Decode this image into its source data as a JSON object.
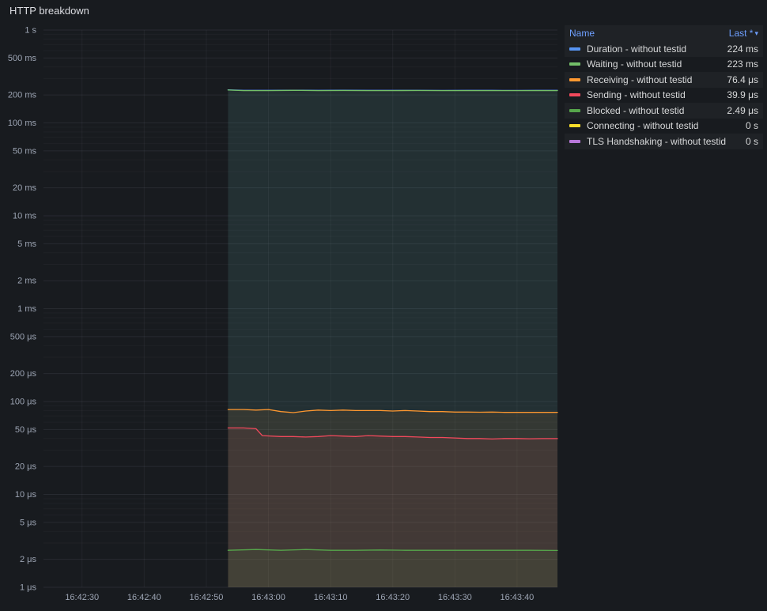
{
  "panel": {
    "title": "HTTP breakdown"
  },
  "legend": {
    "name_header": "Name",
    "value_header": "Last *",
    "sort_icon": "▾"
  },
  "chart_data": {
    "type": "line",
    "title": "HTTP breakdown",
    "y_scale": "log",
    "ylabel": "",
    "xlabel": "",
    "grid": true,
    "legend_position": "right-table",
    "x_range_s": [
      -6.2,
      76.5
    ],
    "x_ticks": [
      {
        "t": 0,
        "label": "16:42:30"
      },
      {
        "t": 10,
        "label": "16:42:40"
      },
      {
        "t": 20,
        "label": "16:42:50"
      },
      {
        "t": 30,
        "label": "16:43:00"
      },
      {
        "t": 40,
        "label": "16:43:10"
      },
      {
        "t": 50,
        "label": "16:43:20"
      },
      {
        "t": 60,
        "label": "16:43:30"
      },
      {
        "t": 70,
        "label": "16:43:40"
      }
    ],
    "y_ticks": [
      {
        "v_us": 1000000,
        "label": "1 s"
      },
      {
        "v_us": 500000,
        "label": "500 ms"
      },
      {
        "v_us": 200000,
        "label": "200 ms"
      },
      {
        "v_us": 100000,
        "label": "100 ms"
      },
      {
        "v_us": 50000,
        "label": "50 ms"
      },
      {
        "v_us": 20000,
        "label": "20 ms"
      },
      {
        "v_us": 10000,
        "label": "10 ms"
      },
      {
        "v_us": 5000,
        "label": "5 ms"
      },
      {
        "v_us": 2000,
        "label": "2 ms"
      },
      {
        "v_us": 1000,
        "label": "1 ms"
      },
      {
        "v_us": 500,
        "label": "500 μs"
      },
      {
        "v_us": 200,
        "label": "200 μs"
      },
      {
        "v_us": 100,
        "label": "100 μs"
      },
      {
        "v_us": 50,
        "label": "50 μs"
      },
      {
        "v_us": 20,
        "label": "20 μs"
      },
      {
        "v_us": 10,
        "label": "10 μs"
      },
      {
        "v_us": 5,
        "label": "5 μs"
      },
      {
        "v_us": 2,
        "label": "2 μs"
      },
      {
        "v_us": 1,
        "label": "1 μs"
      }
    ],
    "y_minor_multiples": [
      3,
      4,
      6,
      7,
      8,
      9
    ],
    "series": [
      {
        "name": "Duration - without testid",
        "color": "#5794F2",
        "last": "224 ms",
        "points": [
          [
            23.5,
            227000
          ],
          [
            26,
            224000
          ],
          [
            30,
            224000
          ],
          [
            34,
            225000
          ],
          [
            38,
            224000
          ],
          [
            42,
            224500
          ],
          [
            46,
            224000
          ],
          [
            50,
            224000
          ],
          [
            54,
            224300
          ],
          [
            58,
            223800
          ],
          [
            62,
            224000
          ],
          [
            66,
            224000
          ],
          [
            70,
            223900
          ],
          [
            73,
            224000
          ],
          [
            76.5,
            224000
          ]
        ]
      },
      {
        "name": "Waiting - without testid",
        "color": "#73BF69",
        "last": "223 ms",
        "points": [
          [
            23.5,
            226000
          ],
          [
            26,
            223000
          ],
          [
            30,
            223000
          ],
          [
            34,
            224000
          ],
          [
            38,
            223000
          ],
          [
            42,
            223500
          ],
          [
            46,
            223000
          ],
          [
            50,
            223000
          ],
          [
            54,
            223300
          ],
          [
            58,
            222800
          ],
          [
            62,
            223000
          ],
          [
            66,
            223000
          ],
          [
            70,
            222900
          ],
          [
            73,
            223000
          ],
          [
            76.5,
            223000
          ]
        ]
      },
      {
        "name": "Receiving - without testid",
        "color": "#FF9830",
        "last": "76.4 μs",
        "points": [
          [
            23.5,
            82
          ],
          [
            26,
            82
          ],
          [
            28,
            81
          ],
          [
            30,
            82
          ],
          [
            32,
            78
          ],
          [
            34,
            76
          ],
          [
            36,
            79
          ],
          [
            38,
            81
          ],
          [
            40,
            80
          ],
          [
            42,
            81
          ],
          [
            44,
            80
          ],
          [
            46,
            80
          ],
          [
            48,
            80
          ],
          [
            50,
            79
          ],
          [
            52,
            80
          ],
          [
            54,
            79
          ],
          [
            56,
            78
          ],
          [
            58,
            78
          ],
          [
            60,
            77
          ],
          [
            62,
            77
          ],
          [
            64,
            76.8
          ],
          [
            66,
            77
          ],
          [
            68,
            76.5
          ],
          [
            70,
            76.5
          ],
          [
            72,
            76.4
          ],
          [
            74,
            76.4
          ],
          [
            76.5,
            76.4
          ]
        ]
      },
      {
        "name": "Sending - without testid",
        "color": "#F2495C",
        "last": "39.9 μs",
        "points": [
          [
            23.5,
            52
          ],
          [
            26,
            52
          ],
          [
            28,
            51
          ],
          [
            29,
            43
          ],
          [
            32,
            42
          ],
          [
            34,
            42
          ],
          [
            36,
            41.5
          ],
          [
            38,
            42
          ],
          [
            40,
            43
          ],
          [
            42,
            42.5
          ],
          [
            44,
            42
          ],
          [
            46,
            43
          ],
          [
            48,
            42.5
          ],
          [
            50,
            42
          ],
          [
            52,
            42
          ],
          [
            54,
            41.5
          ],
          [
            56,
            41
          ],
          [
            58,
            41
          ],
          [
            60,
            40.5
          ],
          [
            62,
            40
          ],
          [
            64,
            40
          ],
          [
            66,
            39.5
          ],
          [
            68,
            40
          ],
          [
            70,
            40
          ],
          [
            72,
            39.7
          ],
          [
            74,
            39.9
          ],
          [
            76.5,
            39.9
          ]
        ]
      },
      {
        "name": "Blocked - without testid",
        "color": "#56A64B",
        "last": "2.49 μs",
        "points": [
          [
            23.5,
            2.5
          ],
          [
            28,
            2.55
          ],
          [
            32,
            2.5
          ],
          [
            36,
            2.55
          ],
          [
            40,
            2.5
          ],
          [
            44,
            2.5
          ],
          [
            48,
            2.52
          ],
          [
            52,
            2.5
          ],
          [
            56,
            2.5
          ],
          [
            60,
            2.5
          ],
          [
            64,
            2.5
          ],
          [
            68,
            2.5
          ],
          [
            72,
            2.5
          ],
          [
            76.5,
            2.49
          ]
        ]
      },
      {
        "name": "Connecting - without testid",
        "color": "#FADE2A",
        "last": "0 s",
        "points": [
          [
            23.5,
            0
          ],
          [
            76.5,
            0
          ]
        ]
      },
      {
        "name": "TLS Handshaking - without testid",
        "color": "#B877D9",
        "last": "0 s",
        "points": [
          [
            23.5,
            0
          ],
          [
            76.5,
            0
          ]
        ]
      }
    ]
  }
}
